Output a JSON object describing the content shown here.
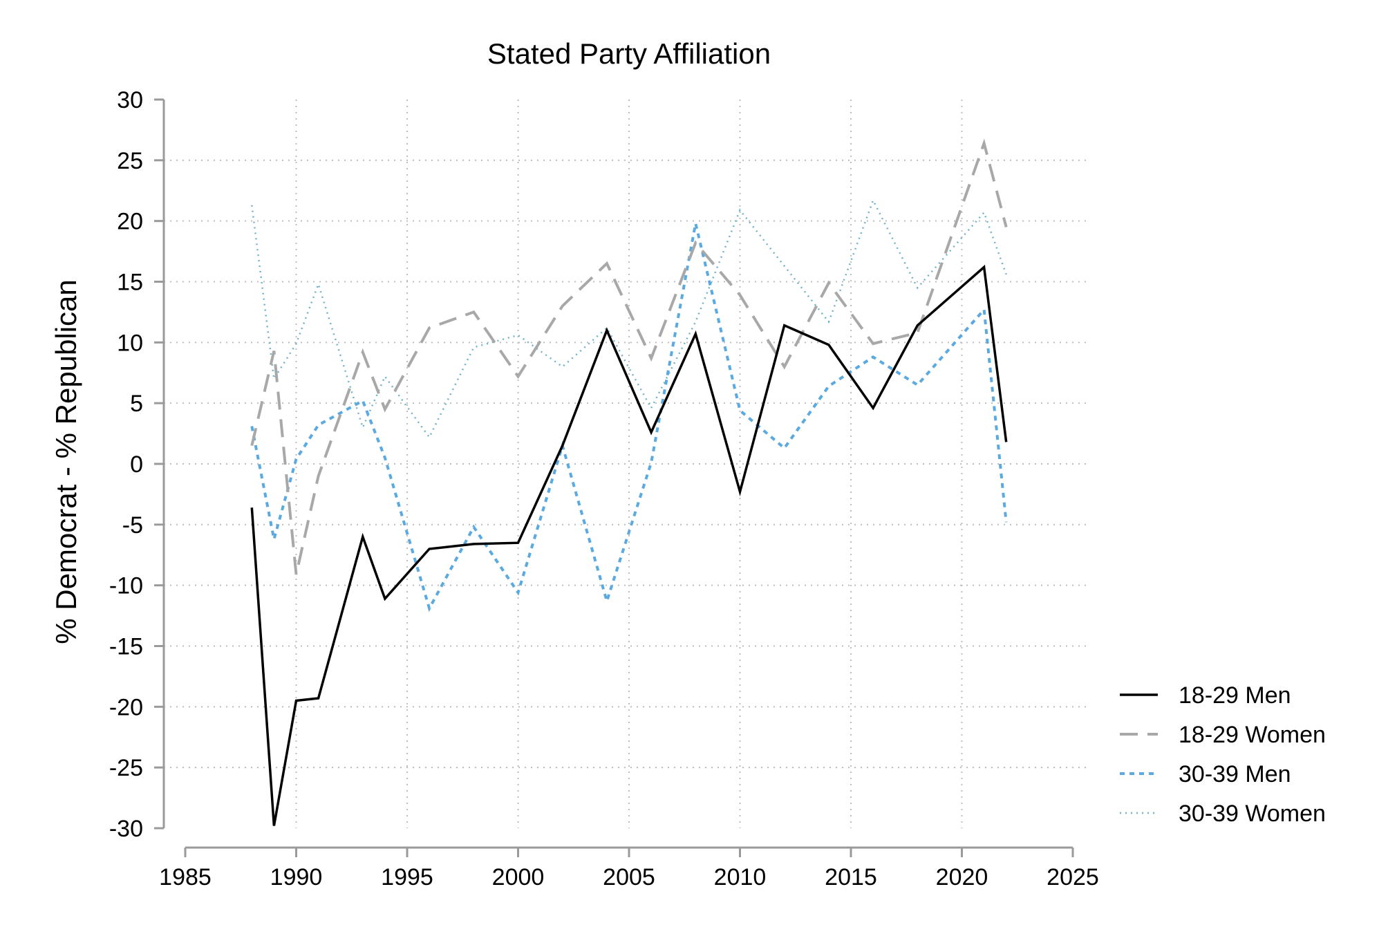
{
  "chart_data": {
    "type": "line",
    "title": "Stated Party Affiliation",
    "xlabel": "",
    "ylabel": "% Democrat - % Republican",
    "xlim": [
      1985,
      2025
    ],
    "ylim": [
      -30,
      30
    ],
    "xticks": [
      "1985",
      "1990",
      "1995",
      "2000",
      "2005",
      "2010",
      "2015",
      "2020",
      "2025"
    ],
    "yticks": [
      "30",
      "25",
      "20",
      "15",
      "10",
      "5",
      "0",
      "-5",
      "-10",
      "-15",
      "-20",
      "-25",
      "-30"
    ],
    "grid": true,
    "legend_position": "right-bottom",
    "series": [
      {
        "name": "18-29 Men",
        "color": "#000000",
        "style": "solid",
        "x": [
          1988,
          1989,
          1990,
          1991,
          1993,
          1994,
          1996,
          1998,
          2000,
          2002,
          2004,
          2006,
          2008,
          2010,
          2012,
          2014,
          2016,
          2018,
          2021,
          2022
        ],
        "y": [
          -3.6,
          -29.8,
          -19.5,
          -19.3,
          -6.0,
          -11.1,
          -7.0,
          -6.6,
          -6.5,
          1.5,
          11.0,
          2.6,
          10.7,
          -2.3,
          11.4,
          9.8,
          4.6,
          11.4,
          16.2,
          1.8
        ]
      },
      {
        "name": "18-29 Women",
        "color": "#a8a8a8",
        "style": "dashed",
        "x": [
          1988,
          1989,
          1990,
          1991,
          1993,
          1994,
          1996,
          1998,
          2000,
          2002,
          2004,
          2006,
          2008,
          2010,
          2012,
          2014,
          2016,
          2018,
          2021,
          2022
        ],
        "y": [
          1.5,
          9.3,
          -9.1,
          -1.0,
          9.2,
          4.5,
          11.2,
          12.5,
          7.2,
          13.0,
          16.5,
          8.7,
          18.2,
          13.9,
          8.0,
          14.9,
          9.9,
          10.8,
          26.4,
          19.5
        ]
      },
      {
        "name": "30-39 Men",
        "color": "#5aa9e0",
        "style": "dotted",
        "x": [
          1988,
          1989,
          1990,
          1991,
          1993,
          1994,
          1996,
          1998,
          2000,
          2002,
          2004,
          2006,
          2008,
          2010,
          2012,
          2014,
          2016,
          2018,
          2021,
          2022
        ],
        "y": [
          3.1,
          -6.2,
          0.4,
          3.2,
          5.2,
          0.5,
          -11.9,
          -5.2,
          -10.6,
          1.5,
          -11.3,
          0.1,
          19.8,
          4.4,
          1.3,
          6.4,
          8.8,
          6.5,
          12.7,
          -4.8
        ]
      },
      {
        "name": "30-39 Women",
        "color": "#6fb3c8",
        "style": "finely-dotted",
        "x": [
          1988,
          1989,
          1990,
          1991,
          1993,
          1994,
          1996,
          1998,
          2000,
          2002,
          2004,
          2006,
          2008,
          2010,
          2012,
          2014,
          2016,
          2018,
          2021,
          2022
        ],
        "y": [
          21.3,
          7.0,
          9.9,
          14.8,
          3.0,
          7.2,
          2.2,
          9.6,
          10.6,
          8.0,
          11.2,
          4.6,
          11.7,
          20.9,
          16.3,
          11.7,
          21.7,
          14.5,
          20.7,
          15.6
        ]
      }
    ]
  }
}
